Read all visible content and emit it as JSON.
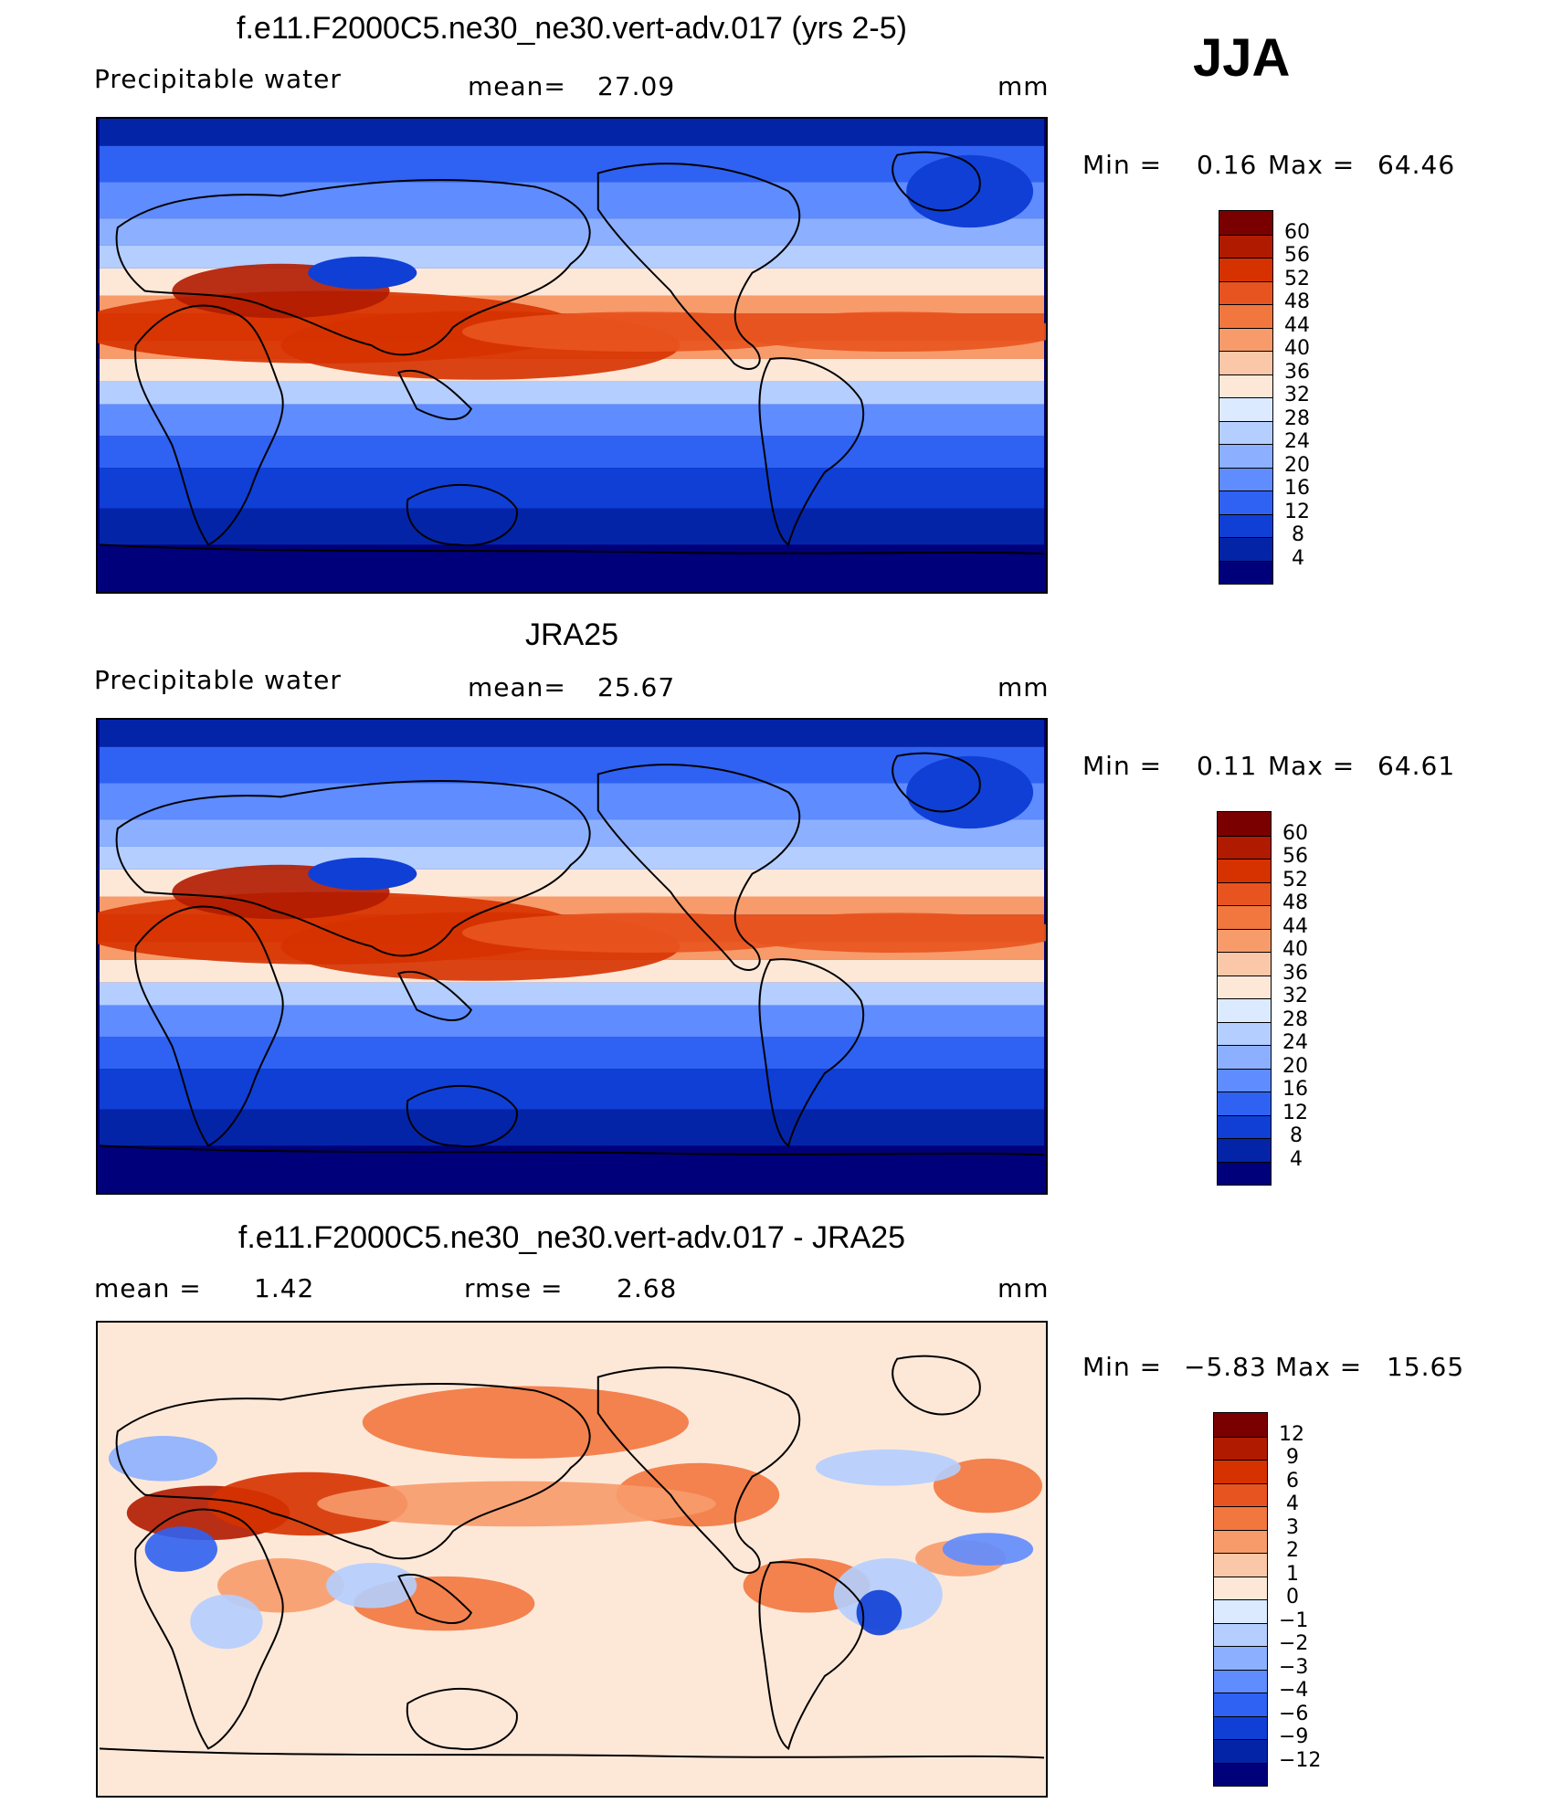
{
  "season": "JJA",
  "panels": [
    {
      "id": "model",
      "title": "f.e11.F2000C5.ne30_ne30.vert-adv.017 (yrs 2-5)",
      "variable": "Precipitable water",
      "stat1_label": "mean=",
      "stat1_value": "27.09",
      "units": "mm",
      "min_label": "Min =",
      "min_value": "0.16",
      "max_label": "Max =",
      "max_value": "64.46"
    },
    {
      "id": "obs",
      "title": "JRA25",
      "variable": "Precipitable water",
      "stat1_label": "mean=",
      "stat1_value": "25.67",
      "units": "mm",
      "min_label": "Min =",
      "min_value": "0.11",
      "max_label": "Max =",
      "max_value": "64.61"
    },
    {
      "id": "diff",
      "title": "f.e11.F2000C5.ne30_ne30.vert-adv.017 - JRA25",
      "stat1_label": "mean =",
      "stat1_value": "1.42",
      "stat2_label": "rmse =",
      "stat2_value": "2.68",
      "units": "mm",
      "min_label": "Min =",
      "min_value": "−5.83",
      "max_label": "Max =",
      "max_value": "15.65"
    }
  ],
  "chart_data": [
    {
      "type": "heatmap",
      "title": "f.e11.F2000C5.ne30_ne30.vert-adv.017 (yrs 2-5)",
      "variable": "Precipitable water",
      "units": "mm",
      "mean": 27.09,
      "min": 0.16,
      "max": 64.46,
      "colorbar_labels": [
        "60",
        "56",
        "52",
        "48",
        "44",
        "40",
        "36",
        "32",
        "28",
        "24",
        "20",
        "16",
        "12",
        "8",
        "4"
      ],
      "colors": [
        "#7a0000",
        "#b01b00",
        "#d63200",
        "#e8541f",
        "#f2773f",
        "#f79b6b",
        "#fac8a8",
        "#fde8d8",
        "#dceaff",
        "#b4ceff",
        "#8cb0ff",
        "#5f8cff",
        "#2f62f2",
        "#103fd6",
        "#0424a8",
        "#00007a"
      ]
    },
    {
      "type": "heatmap",
      "title": "JRA25",
      "variable": "Precipitable water",
      "units": "mm",
      "mean": 25.67,
      "min": 0.11,
      "max": 64.61,
      "colorbar_labels": [
        "60",
        "56",
        "52",
        "48",
        "44",
        "40",
        "36",
        "32",
        "28",
        "24",
        "20",
        "16",
        "12",
        "8",
        "4"
      ],
      "colors": [
        "#7a0000",
        "#b01b00",
        "#d63200",
        "#e8541f",
        "#f2773f",
        "#f79b6b",
        "#fac8a8",
        "#fde8d8",
        "#dceaff",
        "#b4ceff",
        "#8cb0ff",
        "#5f8cff",
        "#2f62f2",
        "#103fd6",
        "#0424a8",
        "#00007a"
      ]
    },
    {
      "type": "heatmap",
      "title": "f.e11.F2000C5.ne30_ne30.vert-adv.017 - JRA25",
      "units": "mm",
      "mean": 1.42,
      "rmse": 2.68,
      "min": -5.83,
      "max": 15.65,
      "colorbar_labels": [
        "12",
        "9",
        "6",
        "4",
        "3",
        "2",
        "1",
        "0",
        "−1",
        "−2",
        "−3",
        "−4",
        "−6",
        "−9",
        "−12"
      ],
      "colors": [
        "#7a0000",
        "#b01b00",
        "#d63200",
        "#e8541f",
        "#f2773f",
        "#f79b6b",
        "#fac8a8",
        "#fde8d8",
        "#dceaff",
        "#b4ceff",
        "#8cb0ff",
        "#5f8cff",
        "#2f62f2",
        "#103fd6",
        "#0424a8",
        "#00007a"
      ]
    }
  ]
}
